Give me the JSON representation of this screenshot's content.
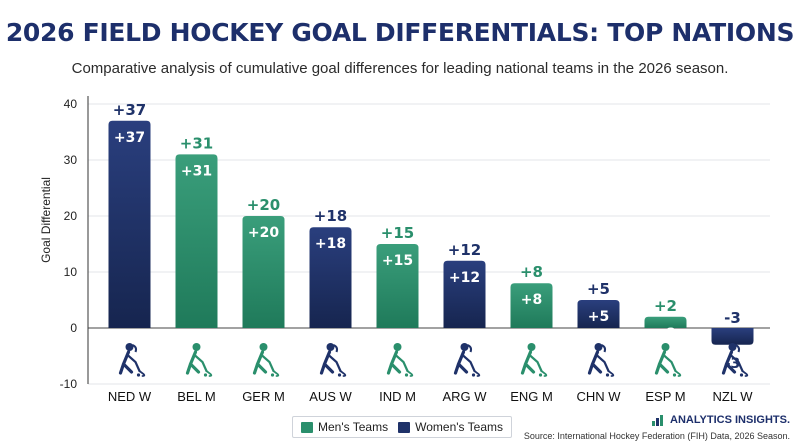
{
  "header": {
    "title": "2026 FIELD HOCKEY GOAL DIFFERENTIALS: TOP NATIONS",
    "subtitle": "Comparative analysis of cumulative goal differences for leading national teams in the 2026 season."
  },
  "chart_data": {
    "type": "bar",
    "ylabel": "Goal Differential",
    "xlabel": "",
    "ylim": [
      -10,
      40
    ],
    "yticks": [
      -10,
      0,
      10,
      20,
      30,
      40
    ],
    "grid": true,
    "categories": [
      "NED W",
      "BEL M",
      "GER M",
      "AUS W",
      "IND M",
      "ARG W",
      "ENG M",
      "CHN W",
      "ESP M",
      "NZL W"
    ],
    "values": [
      37,
      31,
      20,
      18,
      15,
      12,
      8,
      5,
      2,
      -3
    ],
    "value_labels": [
      "+37",
      "+31",
      "+20",
      "+18",
      "+15",
      "+12",
      "+8",
      "+5",
      "+2",
      "-3"
    ],
    "team_type": [
      "women",
      "men",
      "men",
      "women",
      "men",
      "women",
      "men",
      "women",
      "men",
      "women"
    ],
    "icons": [
      "women-player-icon",
      "men-player-icon",
      "men-player-icon",
      "women-player-icon",
      "men-player-icon",
      "women-player-icon",
      "men-player-icon",
      "women-player-icon",
      "men-player-icon",
      "women-player-icon"
    ],
    "legend": {
      "position": "bottom-center",
      "entries": [
        {
          "key": "men",
          "label": "Men's Teams",
          "color": "#2a8f6c"
        },
        {
          "key": "women",
          "label": "Women's Teams",
          "color": "#1f3269"
        }
      ]
    }
  },
  "footer": {
    "brand": "ANALYTICS INSIGHTS.",
    "source": "Source: International Hockey Federation (FIH) Data, 2026 Season."
  }
}
